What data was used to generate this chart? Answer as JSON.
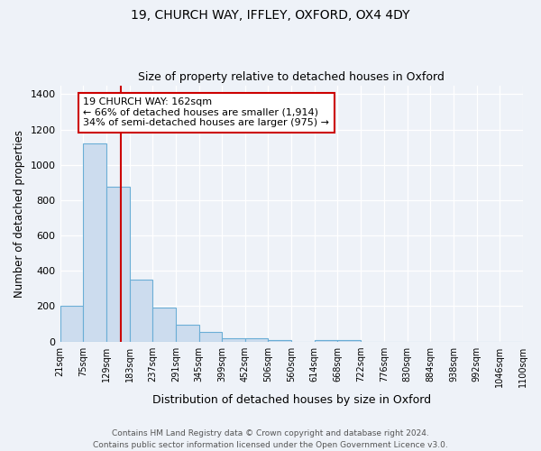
{
  "title1": "19, CHURCH WAY, IFFLEY, OXFORD, OX4 4DY",
  "title2": "Size of property relative to detached houses in Oxford",
  "xlabel": "Distribution of detached houses by size in Oxford",
  "ylabel": "Number of detached properties",
  "bin_labels": [
    "21sqm",
    "75sqm",
    "129sqm",
    "183sqm",
    "237sqm",
    "291sqm",
    "345sqm",
    "399sqm",
    "452sqm",
    "506sqm",
    "560sqm",
    "614sqm",
    "668sqm",
    "722sqm",
    "776sqm",
    "830sqm",
    "884sqm",
    "938sqm",
    "992sqm",
    "1046sqm",
    "1100sqm"
  ],
  "heights": [
    200,
    1122,
    878,
    350,
    193,
    97,
    55,
    20,
    17,
    10,
    0,
    10,
    10,
    0,
    0,
    0,
    0,
    0,
    0,
    0
  ],
  "bar_color": "#ccdcee",
  "bar_edge_color": "#6baed6",
  "vline_color": "#cc0000",
  "box_edge_color": "#cc0000",
  "annotation_line1": "19 CHURCH WAY: 162sqm",
  "annotation_line2": "← 66% of detached houses are smaller (1,914)",
  "annotation_line3": "34% of semi-detached houses are larger (975) →",
  "ylim": [
    0,
    1450
  ],
  "yticks": [
    0,
    200,
    400,
    600,
    800,
    1000,
    1200,
    1400
  ],
  "footer1": "Contains HM Land Registry data © Crown copyright and database right 2024.",
  "footer2": "Contains public sector information licensed under the Open Government Licence v3.0.",
  "bg_color": "#eef2f8"
}
